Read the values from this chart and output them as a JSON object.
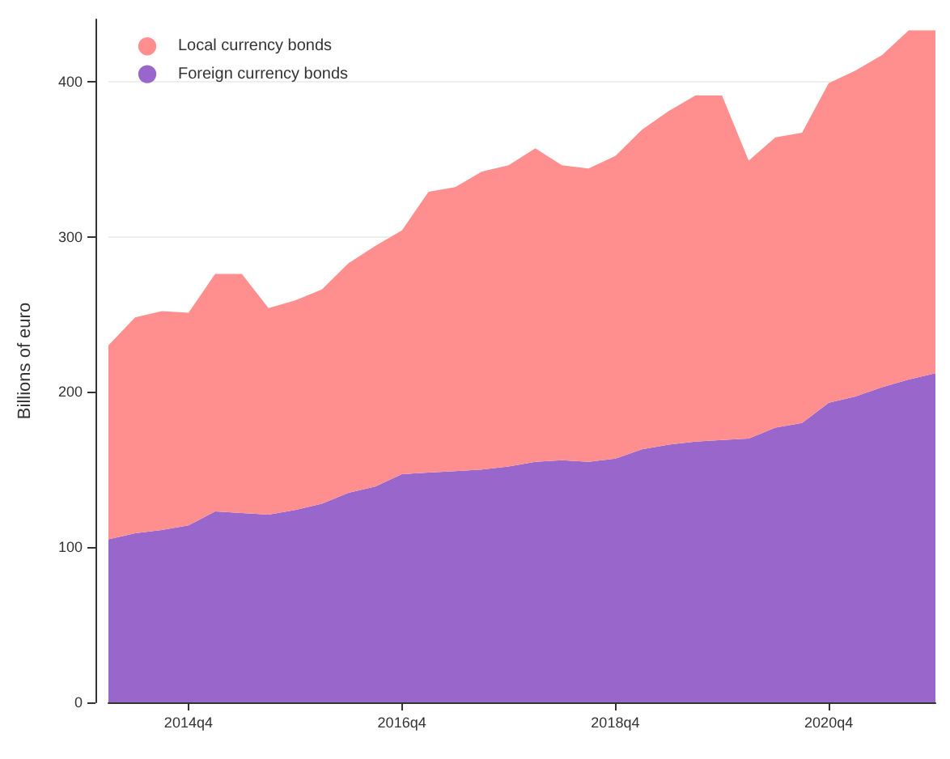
{
  "chart_data": {
    "type": "area",
    "ylabel": "Billions of euro",
    "stacked": true,
    "grid": "y",
    "legend": "top left",
    "categories": [
      null,
      null,
      null,
      "2014q4",
      null,
      null,
      null,
      null,
      null,
      null,
      null,
      "2016q4",
      null,
      null,
      null,
      null,
      null,
      null,
      null,
      "2018q4",
      null,
      null,
      null,
      null,
      null,
      null,
      null,
      "2020q4",
      null,
      null,
      null,
      null
    ],
    "ylim": [
      0,
      440
    ],
    "yticks": [
      0,
      100,
      200,
      300,
      400
    ],
    "series": [
      {
        "name": "Foreign currency bonds",
        "color": "#9966cc",
        "values": [
          105,
          109,
          111,
          114,
          123,
          122,
          121,
          124,
          128,
          135,
          139,
          147,
          148,
          149,
          150,
          152,
          155,
          156,
          155,
          157,
          163,
          166,
          168,
          169,
          170,
          177,
          180,
          193,
          197,
          203,
          208,
          212
        ]
      },
      {
        "name": "Local currency bonds",
        "color": "#ff8f8f",
        "values": [
          125,
          139,
          141,
          137,
          153,
          154,
          133,
          135,
          138,
          148,
          155,
          157,
          181,
          183,
          192,
          194,
          202,
          190,
          189,
          195,
          206,
          215,
          223,
          222,
          179,
          187,
          187,
          206,
          210,
          214,
          225,
          221
        ]
      }
    ]
  }
}
